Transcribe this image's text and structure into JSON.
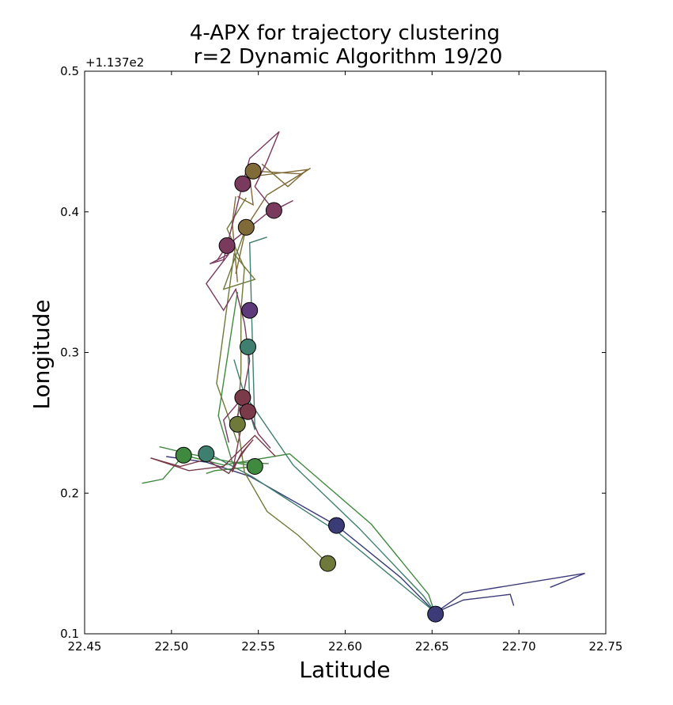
{
  "chart_data": {
    "type": "line",
    "title": "4-APX for trajectory clustering",
    "subtitle": "r=2   Dynamic Algorithm 19/20",
    "xlabel": "Latitude",
    "ylabel": "Longitude",
    "xlim": [
      22.45,
      22.75
    ],
    "ylim": [
      0.1,
      0.5
    ],
    "x_ticks": [
      "22.45",
      "22.50",
      "22.55",
      "22.60",
      "22.65",
      "22.70",
      "22.75"
    ],
    "x_tick_values": [
      22.45,
      22.5,
      22.55,
      22.6,
      22.65,
      22.7,
      22.75
    ],
    "y_ticks": [
      "0.1",
      "0.2",
      "0.3",
      "0.4",
      "0.5"
    ],
    "y_tick_values": [
      0.1,
      0.2,
      0.3,
      0.4,
      0.5
    ],
    "y_offset_text": "+1.137e2",
    "grid": false,
    "legend": "none",
    "series": [
      {
        "color": "#3b3b78",
        "points": [
          [
            22.497,
            0.226
          ],
          [
            22.52,
            0.222
          ],
          [
            22.545,
            0.212
          ],
          [
            22.595,
            0.177
          ],
          [
            22.632,
            0.14
          ],
          [
            22.652,
            0.115
          ],
          [
            22.668,
            0.124
          ],
          [
            22.695,
            0.128
          ],
          [
            22.697,
            0.12
          ]
        ]
      },
      {
        "color": "#3b3b78",
        "points": [
          [
            22.652,
            0.115
          ],
          [
            22.668,
            0.129
          ],
          [
            22.738,
            0.143
          ],
          [
            22.718,
            0.133
          ]
        ]
      },
      {
        "color": "#3f7f70",
        "points": [
          [
            22.52,
            0.229
          ],
          [
            22.546,
            0.212
          ],
          [
            22.595,
            0.173
          ],
          [
            22.652,
            0.115
          ]
        ]
      },
      {
        "color": "#3f7f70",
        "points": [
          [
            22.544,
            0.304
          ],
          [
            22.545,
            0.265
          ],
          [
            22.57,
            0.22
          ],
          [
            22.608,
            0.175
          ],
          [
            22.645,
            0.127
          ],
          [
            22.652,
            0.115
          ]
        ]
      },
      {
        "color": "#3f7f70",
        "points": [
          [
            22.536,
            0.295
          ],
          [
            22.548,
            0.245
          ],
          [
            22.545,
            0.378
          ],
          [
            22.555,
            0.382
          ]
        ]
      },
      {
        "color": "#3f8a3f",
        "points": [
          [
            22.483,
            0.207
          ],
          [
            22.495,
            0.21
          ],
          [
            22.507,
            0.227
          ],
          [
            22.53,
            0.22
          ],
          [
            22.568,
            0.228
          ],
          [
            22.615,
            0.178
          ],
          [
            22.648,
            0.128
          ],
          [
            22.651,
            0.117
          ]
        ]
      },
      {
        "color": "#3f8a3f",
        "points": [
          [
            22.493,
            0.233
          ],
          [
            22.51,
            0.228
          ],
          [
            22.548,
            0.219
          ],
          [
            22.525,
            0.216
          ],
          [
            22.52,
            0.214
          ]
        ]
      },
      {
        "color": "#3f8a3f",
        "points": [
          [
            22.538,
            0.343
          ],
          [
            22.527,
            0.255
          ],
          [
            22.535,
            0.222
          ],
          [
            22.556,
            0.221
          ]
        ]
      },
      {
        "color": "#6f7a3a",
        "points": [
          [
            22.59,
            0.15
          ],
          [
            22.573,
            0.17
          ],
          [
            22.555,
            0.187
          ],
          [
            22.542,
            0.215
          ],
          [
            22.538,
            0.249
          ],
          [
            22.54,
            0.286
          ],
          [
            22.54,
            0.33
          ],
          [
            22.542,
            0.36
          ],
          [
            22.532,
            0.388
          ],
          [
            22.543,
            0.41
          ]
        ]
      },
      {
        "color": "#6f7a3a",
        "points": [
          [
            22.543,
            0.389
          ],
          [
            22.53,
            0.345
          ],
          [
            22.548,
            0.352
          ],
          [
            22.536,
            0.37
          ],
          [
            22.526,
            0.278
          ],
          [
            22.538,
            0.236
          ]
        ]
      },
      {
        "color": "#7f6a38",
        "points": [
          [
            22.547,
            0.429
          ],
          [
            22.575,
            0.427
          ],
          [
            22.58,
            0.431
          ],
          [
            22.555,
            0.412
          ],
          [
            22.543,
            0.389
          ],
          [
            22.537,
            0.356
          ]
        ]
      },
      {
        "color": "#7f6a38",
        "points": [
          [
            22.552,
            0.434
          ],
          [
            22.567,
            0.418
          ],
          [
            22.578,
            0.43
          ],
          [
            22.545,
            0.425
          ],
          [
            22.547,
            0.405
          ],
          [
            22.538,
            0.411
          ]
        ]
      },
      {
        "color": "#7f6a38",
        "points": [
          [
            22.537,
            0.411
          ],
          [
            22.535,
            0.392
          ],
          [
            22.538,
            0.35
          ]
        ]
      },
      {
        "color": "#7a3a5e",
        "points": [
          [
            22.541,
            0.42
          ],
          [
            22.545,
            0.438
          ],
          [
            22.562,
            0.457
          ],
          [
            22.555,
            0.436
          ],
          [
            22.548,
            0.418
          ],
          [
            22.559,
            0.401
          ],
          [
            22.57,
            0.408
          ],
          [
            22.554,
            0.398
          ],
          [
            22.532,
            0.376
          ],
          [
            22.526,
            0.365
          ]
        ]
      },
      {
        "color": "#7a3a5e",
        "points": [
          [
            22.541,
            0.42
          ],
          [
            22.532,
            0.376
          ],
          [
            22.53,
            0.366
          ],
          [
            22.522,
            0.363
          ],
          [
            22.533,
            0.37
          ],
          [
            22.52,
            0.349
          ],
          [
            22.53,
            0.33
          ],
          [
            22.537,
            0.345
          ],
          [
            22.542,
            0.321
          ],
          [
            22.545,
            0.294
          ],
          [
            22.541,
            0.268
          ],
          [
            22.55,
            0.242
          ],
          [
            22.557,
            0.232
          ]
        ]
      },
      {
        "color": "#7a3a5e",
        "points": [
          [
            22.538,
            0.255
          ],
          [
            22.541,
            0.268
          ],
          [
            22.53,
            0.252
          ],
          [
            22.533,
            0.236
          ]
        ]
      },
      {
        "color": "#7a3a4a",
        "points": [
          [
            22.488,
            0.225
          ],
          [
            22.505,
            0.219
          ],
          [
            22.52,
            0.224
          ],
          [
            22.533,
            0.214
          ],
          [
            22.543,
            0.232
          ],
          [
            22.547,
            0.238
          ],
          [
            22.54,
            0.228
          ],
          [
            22.535,
            0.215
          ],
          [
            22.542,
            0.258
          ],
          [
            22.54,
            0.27
          ]
        ]
      },
      {
        "color": "#7a3a4a",
        "points": [
          [
            22.488,
            0.225
          ],
          [
            22.51,
            0.216
          ],
          [
            22.53,
            0.219
          ],
          [
            22.548,
            0.241
          ],
          [
            22.56,
            0.226
          ]
        ]
      }
    ],
    "markers": [
      {
        "x": 22.547,
        "y": 0.429,
        "color": "#7f6a38"
      },
      {
        "x": 22.541,
        "y": 0.42,
        "color": "#7a3a5e"
      },
      {
        "x": 22.559,
        "y": 0.401,
        "color": "#7a3a5e"
      },
      {
        "x": 22.543,
        "y": 0.389,
        "color": "#7f6a38"
      },
      {
        "x": 22.532,
        "y": 0.376,
        "color": "#7a3a5e"
      },
      {
        "x": 22.545,
        "y": 0.33,
        "color": "#5e3a7a"
      },
      {
        "x": 22.544,
        "y": 0.304,
        "color": "#3f7f70"
      },
      {
        "x": 22.541,
        "y": 0.268,
        "color": "#7a3a4a"
      },
      {
        "x": 22.544,
        "y": 0.258,
        "color": "#7a3a4a"
      },
      {
        "x": 22.538,
        "y": 0.249,
        "color": "#6f7a3a"
      },
      {
        "x": 22.507,
        "y": 0.227,
        "color": "#3f8a3f"
      },
      {
        "x": 22.52,
        "y": 0.228,
        "color": "#3f7f70"
      },
      {
        "x": 22.548,
        "y": 0.219,
        "color": "#3f8a3f"
      },
      {
        "x": 22.595,
        "y": 0.177,
        "color": "#3b3b78"
      },
      {
        "x": 22.59,
        "y": 0.15,
        "color": "#6f7a3a"
      },
      {
        "x": 22.652,
        "y": 0.114,
        "color": "#3b3b78"
      }
    ]
  }
}
